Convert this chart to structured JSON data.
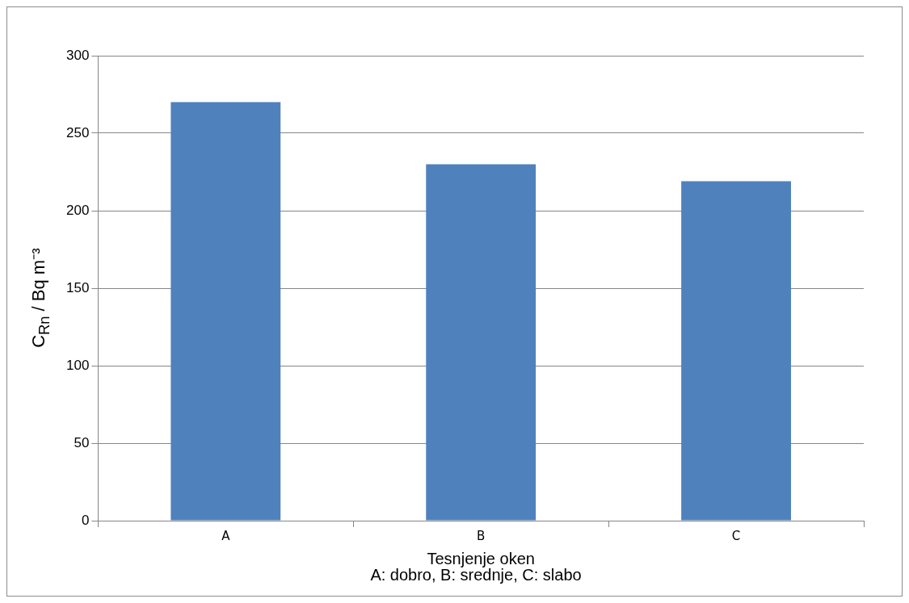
{
  "chart_data": {
    "type": "bar",
    "xlabel": "Tesnjenje oken",
    "ylabel": "C$_{Rn}$ / Bq m⁻³",
    "annotations": [
      "A: dobro, B: srednje, C: slabo"
    ],
    "categories": [
      "A",
      "B",
      "C"
    ],
    "values": [
      270,
      230,
      219
    ],
    "color": "#4f81bd",
    "ylim": [
      0,
      300
    ],
    "yticks": [
      0,
      50,
      100,
      150,
      200,
      250,
      300
    ],
    "grid": "y",
    "legend": false
  }
}
